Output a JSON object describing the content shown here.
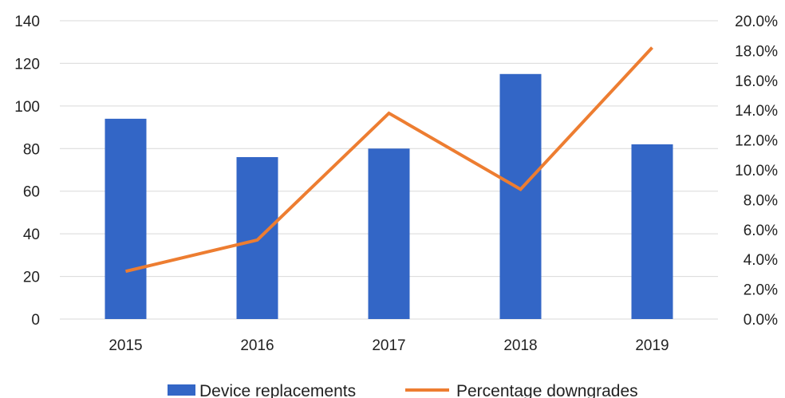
{
  "chart_data": {
    "type": "bar",
    "title": "",
    "xlabel": "",
    "ylabel": "",
    "categories": [
      "2015",
      "2016",
      "2017",
      "2018",
      "2019"
    ],
    "ylim": [
      0,
      140
    ],
    "y_ticks": [
      0,
      20,
      40,
      60,
      80,
      100,
      120,
      140
    ],
    "y2lim": [
      0,
      20
    ],
    "y2_ticks": [
      "0.0%",
      "2.0%",
      "4.0%",
      "6.0%",
      "8.0%",
      "10.0%",
      "12.0%",
      "14.0%",
      "16.0%",
      "18.0%",
      "20.0%"
    ],
    "grid": true,
    "legend_position": "bottom",
    "series": [
      {
        "name": "Device replacements",
        "type": "bar",
        "axis": "left",
        "color": "#3366c6",
        "values": [
          94,
          76,
          80,
          115,
          82
        ]
      },
      {
        "name": "Percentage downgrades",
        "type": "line",
        "axis": "right",
        "unit": "%",
        "color": "#ed7d31",
        "values": [
          3.2,
          5.3,
          13.8,
          8.7,
          18.2
        ]
      }
    ]
  }
}
